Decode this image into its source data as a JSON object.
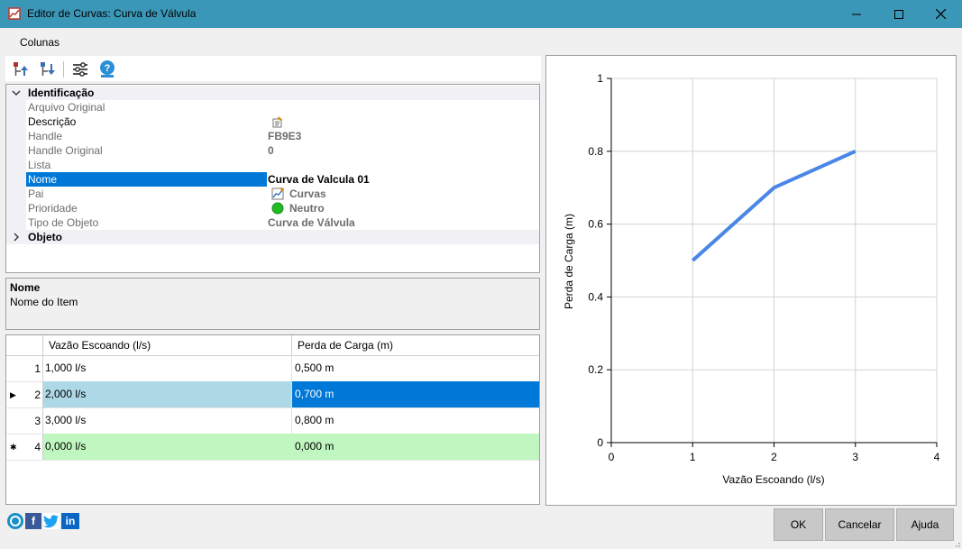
{
  "window": {
    "title": "Editor de Curvas: Curva de Válvula"
  },
  "menu": {
    "items": [
      "Colunas"
    ]
  },
  "properties": {
    "categories": [
      {
        "label": "Identificação",
        "expanded": true,
        "rows": [
          {
            "name": "Arquivo Original",
            "value": ""
          },
          {
            "name": "Descrição",
            "value": ""
          },
          {
            "name": "Handle",
            "value": "FB9E3"
          },
          {
            "name": "Handle Original",
            "value": "0"
          },
          {
            "name": "Lista",
            "value": ""
          },
          {
            "name": "Nome",
            "value": "Curva de Valcula 01"
          },
          {
            "name": "Pai",
            "value": "Curvas"
          },
          {
            "name": "Prioridade",
            "value": "Neutro"
          },
          {
            "name": "Tipo de Objeto",
            "value": "Curva de Válvula"
          }
        ]
      },
      {
        "label": "Objeto",
        "expanded": false,
        "rows": []
      }
    ],
    "selected": "Nome"
  },
  "description": {
    "title": "Nome",
    "text": "Nome do Item"
  },
  "table": {
    "columns": [
      "Vazão Escoando (l/s)",
      "Perda de Carga (m)"
    ],
    "rows": [
      {
        "index": "1",
        "flow": "1,000 l/s",
        "loss": "0,500 m"
      },
      {
        "index": "2",
        "flow": "2,000 l/s",
        "loss": "0,700 m"
      },
      {
        "index": "3",
        "flow": "3,000 l/s",
        "loss": "0,800 m"
      },
      {
        "index": "4",
        "flow": "0,000 l/s",
        "loss": "0,000 m"
      }
    ]
  },
  "chart_data": {
    "type": "line",
    "xlabel": "Vazão Escoando (l/s)",
    "ylabel": "Perda de Carga (m)",
    "xlim": [
      0,
      4
    ],
    "ylim": [
      0,
      1
    ],
    "x_ticks": [
      "0",
      "1",
      "2",
      "3",
      "4"
    ],
    "y_ticks": [
      "0",
      "0.2",
      "0.4",
      "0.6",
      "0.8",
      "1"
    ],
    "grid": true,
    "series": [
      {
        "x": [
          1,
          2,
          3
        ],
        "y": [
          0.5,
          0.7,
          0.8
        ],
        "color": "#4a86e8"
      }
    ]
  },
  "buttons": {
    "ok": "OK",
    "cancel": "Cancelar",
    "help": "Ajuda"
  },
  "social": [
    "f",
    "in"
  ],
  "colors": {
    "titlebar": "#3b97b8",
    "selection": "#0078d7",
    "row_selected_cell": "#add8e6",
    "new_row": "#c0f7c0",
    "line": "#4a86e8",
    "priority_dot": "#22bb22"
  }
}
